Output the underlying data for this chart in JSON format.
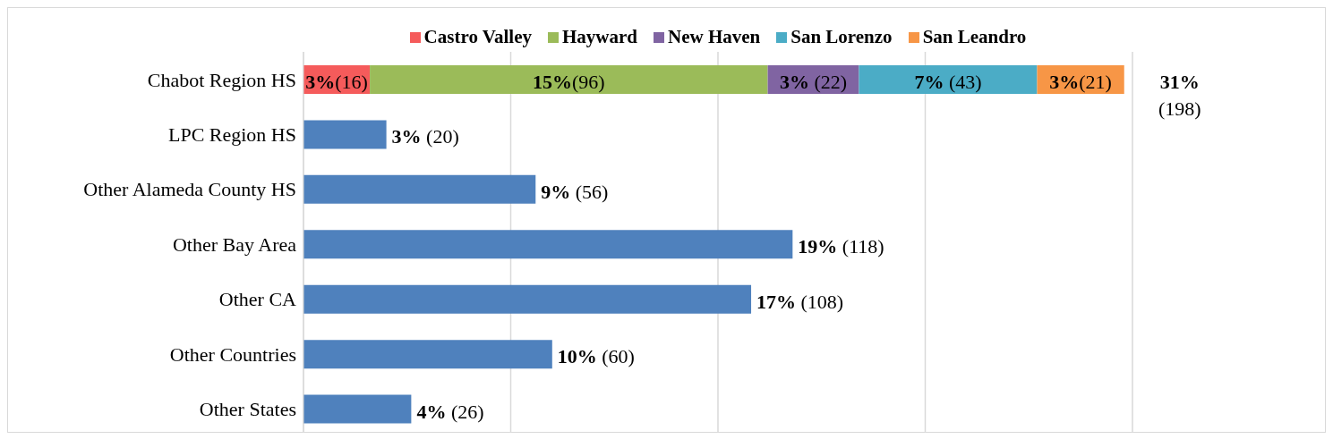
{
  "chart_data": {
    "type": "bar",
    "orientation": "horizontal",
    "stacked": true,
    "categories": [
      "Chabot Region HS",
      "LPC Region HS",
      "Other Alameda County HS",
      "Other Bay Area",
      "Other CA",
      "Other Countries",
      "Other States"
    ],
    "series": [
      {
        "name": "Castro Valley",
        "color": "#f55b5b",
        "values": [
          16,
          null,
          null,
          null,
          null,
          null,
          null
        ],
        "value_labels": [
          "3%(16)",
          null,
          null,
          null,
          null,
          null,
          null
        ]
      },
      {
        "name": "Hayward",
        "color": "#9bbb59",
        "values": [
          96,
          null,
          null,
          null,
          null,
          null,
          null
        ],
        "value_labels": [
          "15%(96)",
          null,
          null,
          null,
          null,
          null,
          null
        ]
      },
      {
        "name": "New Haven",
        "color": "#8064a2",
        "values": [
          22,
          null,
          null,
          null,
          null,
          null,
          null
        ],
        "value_labels": [
          "3% (22)",
          null,
          null,
          null,
          null,
          null,
          null
        ]
      },
      {
        "name": "San Lorenzo",
        "color": "#4bacc6",
        "values": [
          43,
          null,
          null,
          null,
          null,
          null,
          null
        ],
        "value_labels": [
          "7% (43)",
          null,
          null,
          null,
          null,
          null,
          null
        ]
      },
      {
        "name": "San Leandro",
        "color": "#f79646",
        "values": [
          21,
          null,
          null,
          null,
          null,
          null,
          null
        ],
        "value_labels": [
          "3%(21)",
          null,
          null,
          null,
          null,
          null,
          null
        ]
      },
      {
        "color": "#4f81bd",
        "values": [
          null,
          20,
          56,
          118,
          108,
          60,
          26
        ],
        "value_labels": [
          null,
          "3% (20)",
          "9% (56)",
          "19% (118)",
          "17% (108)",
          "10% (60)",
          "4% (26)"
        ]
      }
    ],
    "totals": [
      "31% (198)",
      null,
      null,
      null,
      null,
      null,
      null
    ],
    "grid": "x",
    "legend": "top",
    "tick_labels": "y"
  }
}
